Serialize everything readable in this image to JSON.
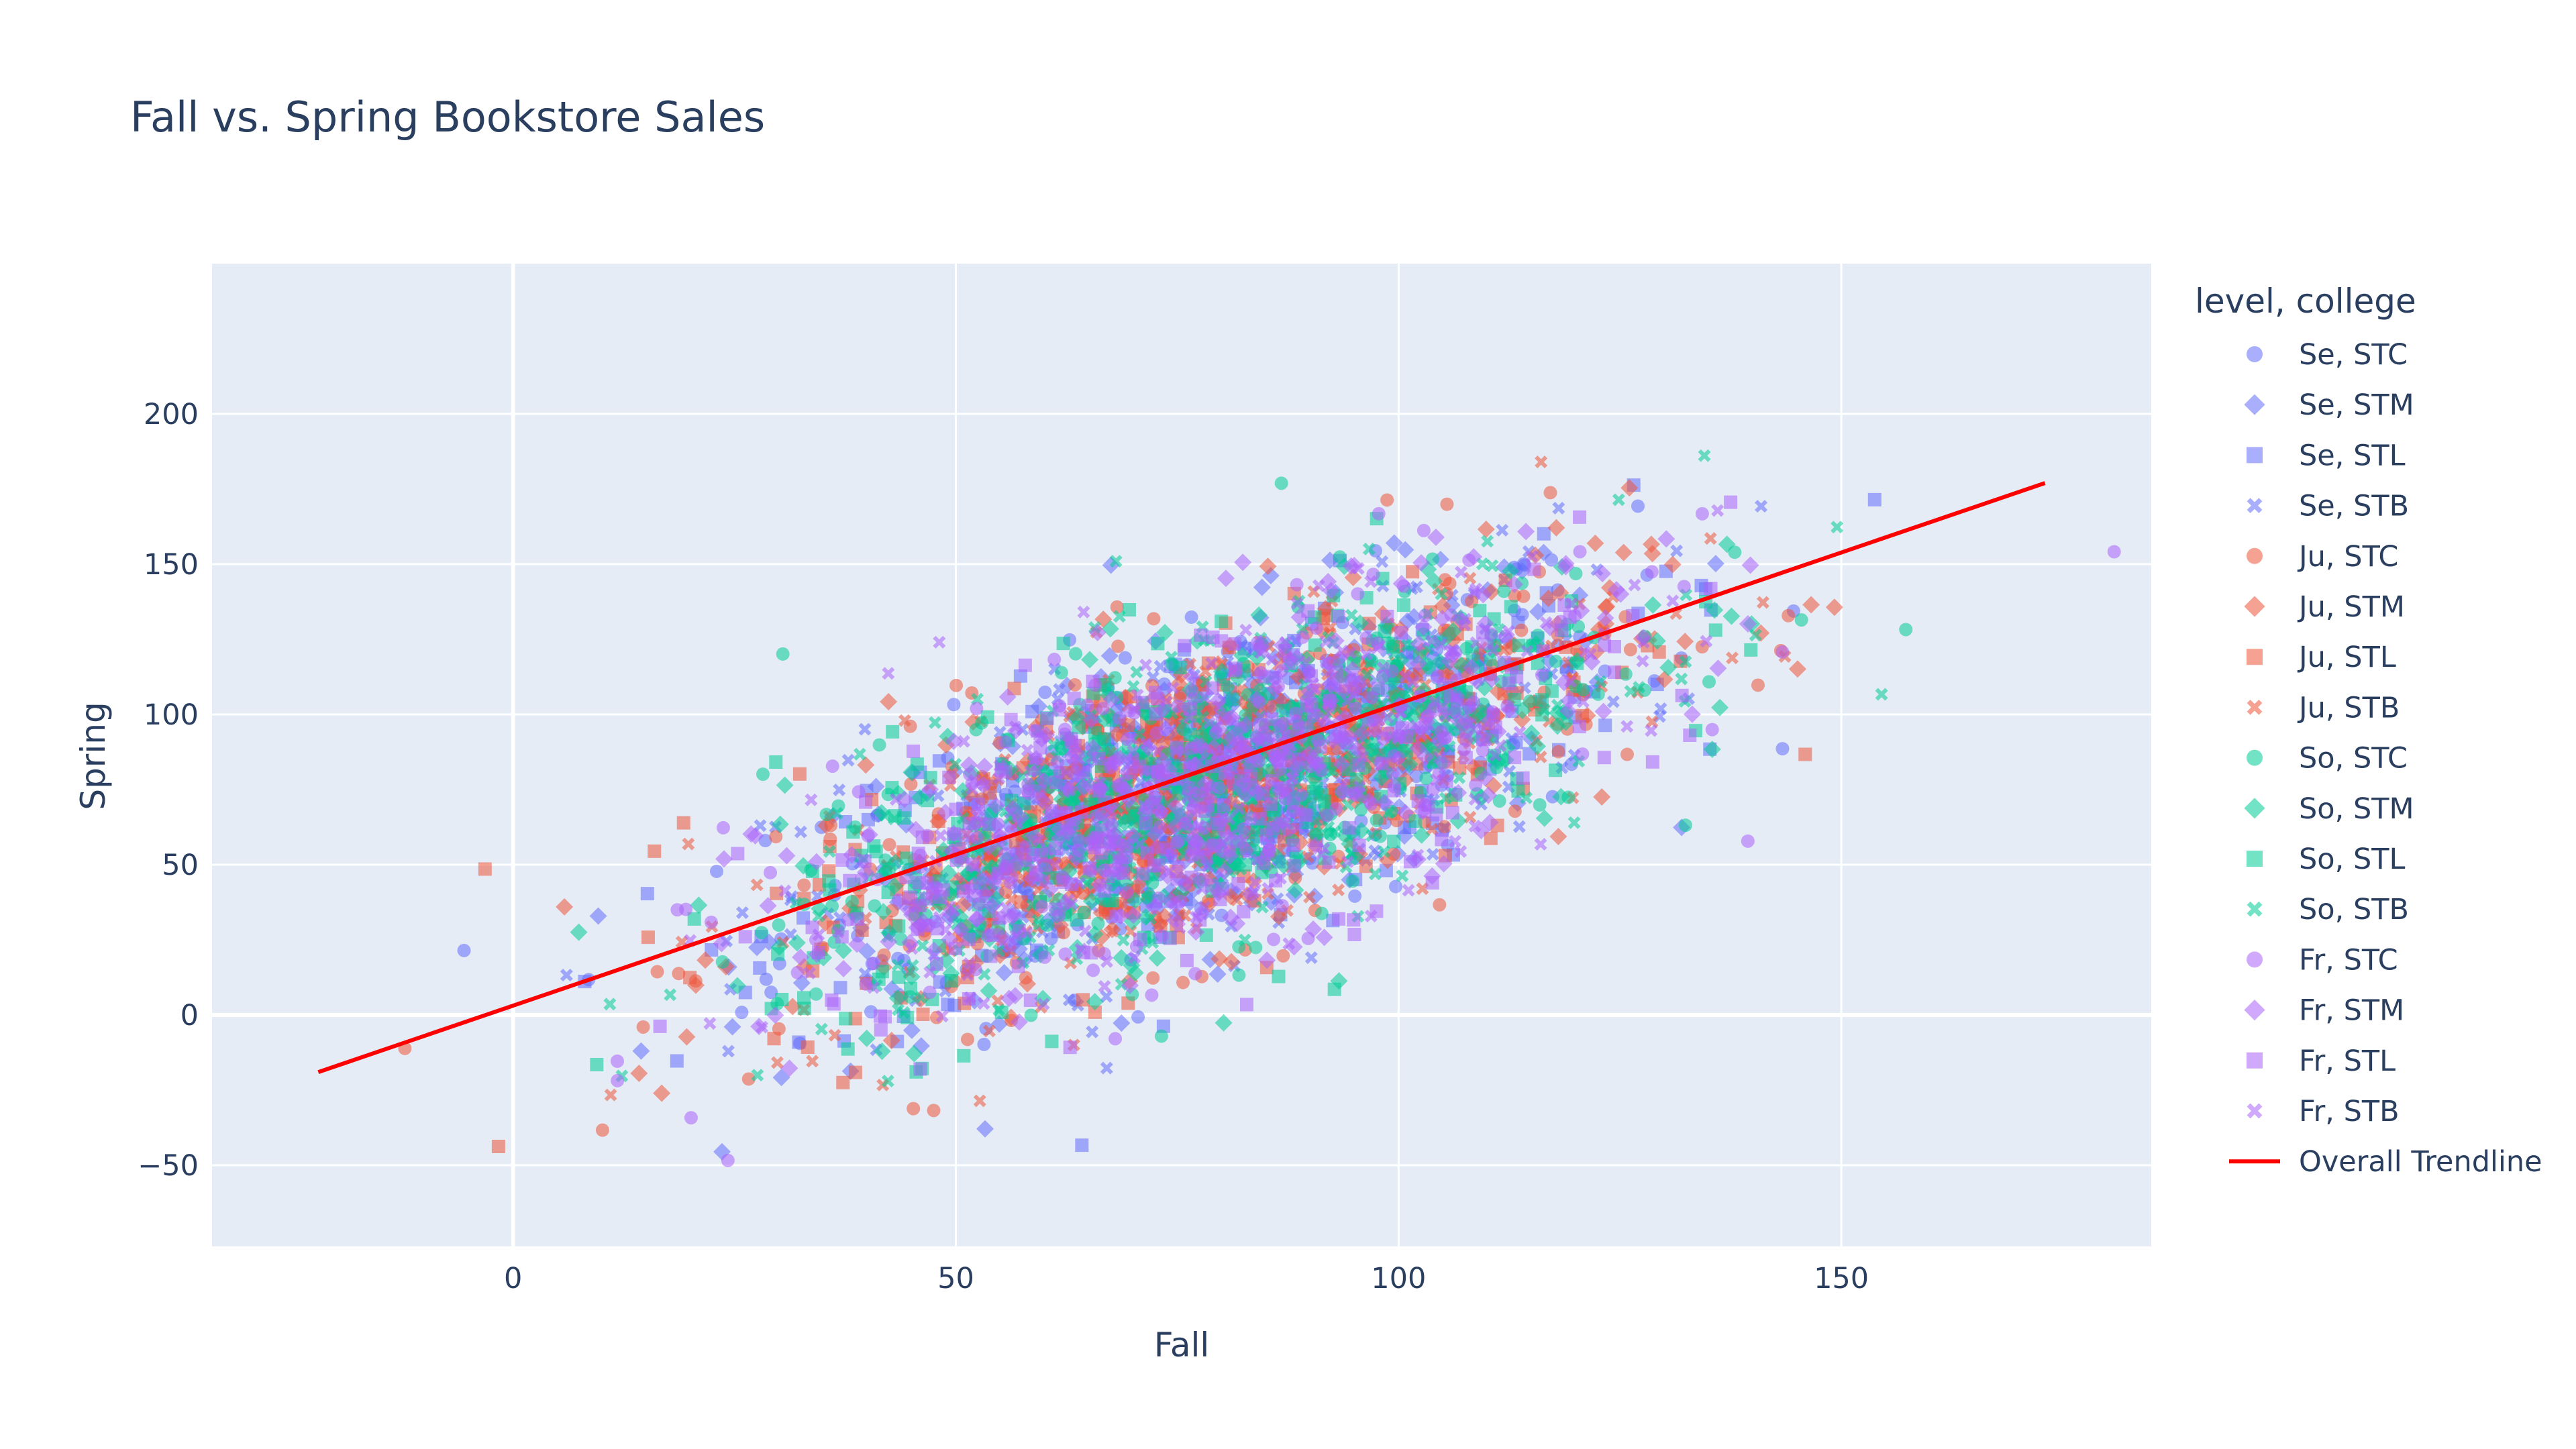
{
  "chart_data": {
    "type": "scatter",
    "title": "Fall vs. Spring Bookstore Sales",
    "xlabel": "Fall",
    "ylabel": "Spring",
    "xlim": [
      -34,
      185
    ],
    "ylim": [
      -77,
      250
    ],
    "x_ticks": [
      0,
      50,
      100,
      150
    ],
    "x_tick_labels": [
      "0",
      "50",
      "100",
      "150"
    ],
    "y_ticks": [
      -50,
      0,
      50,
      100,
      150,
      200
    ],
    "y_tick_labels": [
      "−50",
      "0",
      "50",
      "100",
      "150",
      "200"
    ],
    "grid": true,
    "legend_title": "level, college",
    "legend_position": "right",
    "series": [
      {
        "name": "Se, STC",
        "symbol": "circle",
        "color": "#636efa"
      },
      {
        "name": "Se, STM",
        "symbol": "diamond",
        "color": "#636efa"
      },
      {
        "name": "Se, STL",
        "symbol": "square",
        "color": "#636efa"
      },
      {
        "name": "Se, STB",
        "symbol": "x",
        "color": "#636efa"
      },
      {
        "name": "Ju, STC",
        "symbol": "circle",
        "color": "#EF553B"
      },
      {
        "name": "Ju, STM",
        "symbol": "diamond",
        "color": "#EF553B"
      },
      {
        "name": "Ju, STL",
        "symbol": "square",
        "color": "#EF553B"
      },
      {
        "name": "Ju, STB",
        "symbol": "x",
        "color": "#EF553B"
      },
      {
        "name": "So, STC",
        "symbol": "circle",
        "color": "#00cc96"
      },
      {
        "name": "So, STM",
        "symbol": "diamond",
        "color": "#00cc96"
      },
      {
        "name": "So, STL",
        "symbol": "square",
        "color": "#00cc96"
      },
      {
        "name": "So, STB",
        "symbol": "x",
        "color": "#00cc96"
      },
      {
        "name": "Fr, STC",
        "symbol": "circle",
        "color": "#ab63fa"
      },
      {
        "name": "Fr, STM",
        "symbol": "diamond",
        "color": "#ab63fa"
      },
      {
        "name": "Fr, STL",
        "symbol": "square",
        "color": "#ab63fa"
      },
      {
        "name": "Fr, STB",
        "symbol": "x",
        "color": "#ab63fa"
      }
    ],
    "trendline": {
      "name": "Overall Trendline",
      "color": "#ff0000",
      "x": [
        -22,
        173
      ],
      "y": [
        -19,
        177
      ]
    },
    "distribution_estimate": {
      "points_per_series": 260,
      "center_fall": 78,
      "center_spring": 75,
      "sd_fall": 24,
      "sd_noise": 26,
      "slope": 1.0
    }
  },
  "colors": {
    "plot_background": "#e5ecf6",
    "grid": "#ffffff",
    "text": "#2a3f5f"
  }
}
